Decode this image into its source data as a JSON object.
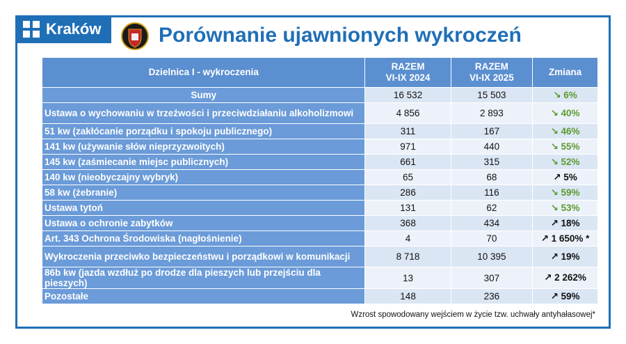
{
  "header": {
    "logo": "Kraków",
    "title": "Porównanie ujawnionych wykroczeń"
  },
  "table": {
    "columns": [
      "Dzielnica I - wykroczenia",
      "RAZEM\nVI-IX 2024",
      "RAZEM\nVI-IX 2025",
      "Zmiana"
    ],
    "rows": [
      [
        "Sumy",
        "16 532",
        "15 503",
        "↘ 6%"
      ],
      [
        "Ustawa o wychowaniu w trzeźwości i przeciwdziałaniu alkoholizmowi",
        "4 856",
        "2 893",
        "↘ 40%"
      ],
      [
        "51 kw (zakłócanie porządku i spokoju publicznego)",
        "311",
        "167",
        "↘ 46%"
      ],
      [
        "141 kw (używanie słów nieprzyzwoitych)",
        "971",
        "440",
        "↘ 55%"
      ],
      [
        "145 kw (zaśmiecanie miejsc publicznych)",
        "661",
        "315",
        "↘ 52%"
      ],
      [
        "140 kw (nieobyczajny wybryk)",
        "65",
        "68",
        "↗ 5%"
      ],
      [
        "58 kw (żebranie)",
        "286",
        "116",
        "↘ 59%"
      ],
      [
        "Ustawa tytoń",
        "131",
        "62",
        "↘ 53%"
      ],
      [
        "Ustawa o ochronie zabytków",
        "368",
        "434",
        "↗ 18%"
      ],
      [
        "Art. 343 Ochrona Środowiska (nagłośnienie)",
        "4",
        "70",
        "↗ 1 650% *"
      ],
      [
        "Wykroczenia przeciwko bezpieczeństwu i porządkowi w komunikacji",
        "8 718",
        "10 395",
        "↗ 19%"
      ],
      [
        "86b kw (jazda wzdłuż po drodze dla pieszych lub przejściu dla pieszych)",
        "13",
        "307",
        "↗ 2 262%"
      ],
      [
        "Pozostałe",
        "148",
        "236",
        "↗ 59%"
      ]
    ]
  },
  "footnote": "Wzrost spowodowany wejściem w życie tzw. uchwały antyhałasowej*"
}
